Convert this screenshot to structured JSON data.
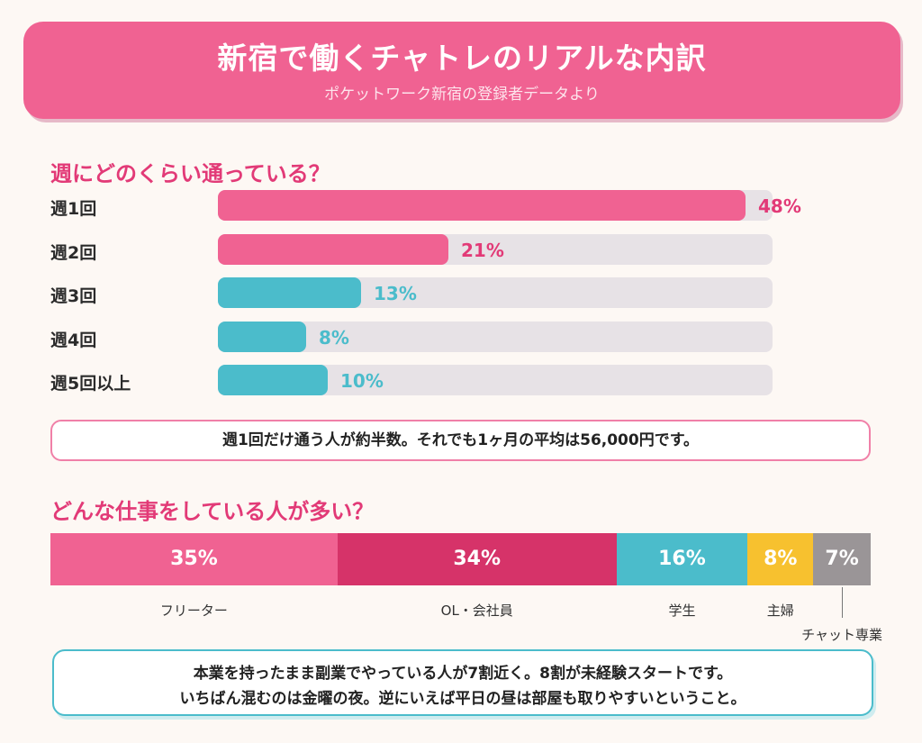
{
  "header": {
    "title": "新宿で働くチャトレのリアルな内訳",
    "subtitle": "ポケットワーク新宿の登録者データより"
  },
  "section1": {
    "title": "週にどのくらい通っている？",
    "note": "週1回だけ通う人が約半数。それでも1ヶ月の平均は56,000円です。"
  },
  "section2": {
    "title": "どんな仕事をしている人が多い？",
    "note_line1": "本業を持ったまま副業でやっている人が7割近く。8割が未経験スタートです。",
    "note_line2": "いちばん混むのは金曜の夜。逆にいえば平日の昼は部屋も取りやすいということ。"
  },
  "colors": {
    "pink": "#f06292",
    "magenta": "#d63369",
    "teal": "#4bbccb",
    "yellow": "#f7c12f",
    "gray": "#9a9597",
    "track": "#e7e2e6"
  },
  "chart_data": [
    {
      "type": "bar",
      "orientation": "horizontal",
      "title": "週にどのくらい通っている？",
      "categories": [
        "週1回",
        "週2回",
        "週3回",
        "週4回",
        "週5回以上"
      ],
      "values": [
        48,
        21,
        13,
        8,
        10
      ],
      "labels": [
        "48%",
        "21%",
        "13%",
        "8%",
        "10%"
      ],
      "bar_colors": [
        "#f06292",
        "#f06292",
        "#4bbccb",
        "#4bbccb",
        "#4bbccb"
      ],
      "label_colors": [
        "#e23a77",
        "#e23a77",
        "#4bbccb",
        "#4bbccb",
        "#4bbccb"
      ],
      "xlim": [
        0,
        50
      ]
    },
    {
      "type": "bar",
      "orientation": "stacked-horizontal",
      "title": "どんな仕事をしている人が多い？",
      "categories": [
        "フリーター",
        "OL・会社員",
        "学生",
        "主婦",
        "チャット専業"
      ],
      "values": [
        35,
        34,
        16,
        8,
        7
      ],
      "labels": [
        "35%",
        "34%",
        "16%",
        "8%",
        "7%"
      ],
      "colors": [
        "#f06292",
        "#d63369",
        "#4bbccb",
        "#f7c12f",
        "#9a9597"
      ]
    }
  ]
}
